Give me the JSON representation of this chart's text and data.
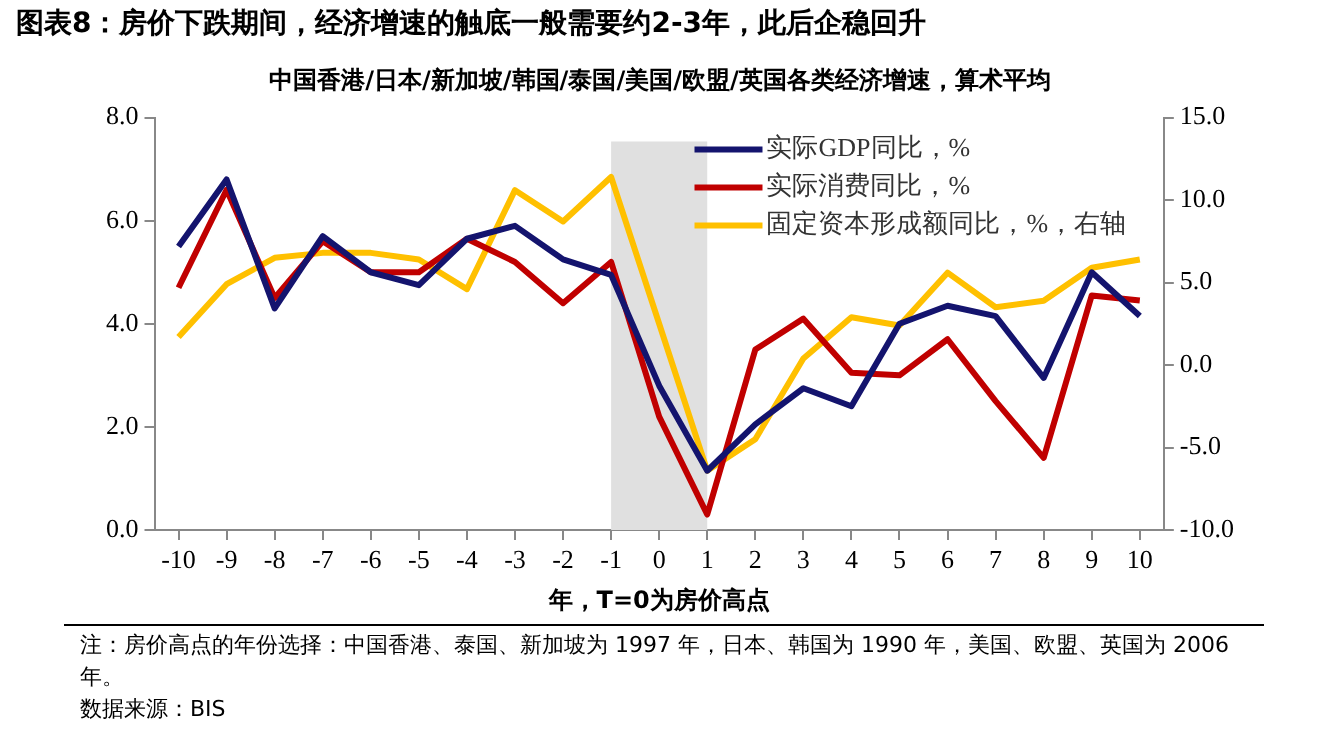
{
  "chart_data": {
    "type": "line",
    "title": "图表8：房价下跌期间，经济增速的触底一般需要约2-3年，此后企稳回升",
    "subtitle": "中国香港/日本/新加坡/韩国/泰国/美国/欧盟/英国各类经济增速，算术平均",
    "xlabel": "年，T=0为房价高点",
    "x": [
      -10,
      -9,
      -8,
      -7,
      -6,
      -5,
      -4,
      -3,
      -2,
      -1,
      0,
      1,
      2,
      3,
      4,
      5,
      6,
      7,
      8,
      9,
      10
    ],
    "xlim": [
      -10.5,
      10.5
    ],
    "xticks": [
      -10,
      -9,
      -8,
      -7,
      -6,
      -5,
      -4,
      -3,
      -2,
      -1,
      0,
      1,
      2,
      3,
      4,
      5,
      6,
      7,
      8,
      9,
      10
    ],
    "ylim": [
      0,
      8
    ],
    "yticks": [
      {
        "value": 0,
        "label": "0.0"
      },
      {
        "value": 2,
        "label": "2.0"
      },
      {
        "value": 4,
        "label": "4.0"
      },
      {
        "value": 6,
        "label": "6.0"
      },
      {
        "value": 8,
        "label": "8.0"
      }
    ],
    "y2lim": [
      -10,
      15
    ],
    "y2ticks": [
      {
        "value": -10,
        "label": "-10.0"
      },
      {
        "value": -5,
        "label": "-5.0"
      },
      {
        "value": 0,
        "label": "0.0"
      },
      {
        "value": 5,
        "label": "5.0"
      },
      {
        "value": 10,
        "label": "10.0"
      },
      {
        "value": 15,
        "label": "15.0"
      }
    ],
    "series": [
      {
        "name": "实际GDP同比，%",
        "color": "#14146e",
        "values": [
          5.5,
          6.8,
          4.3,
          5.7,
          5.0,
          4.75,
          5.65,
          5.9,
          5.25,
          4.95,
          2.8,
          1.15,
          2.05,
          2.75,
          2.4,
          4.0,
          4.35,
          4.15,
          2.95,
          5.0,
          4.15
        ]
      },
      {
        "name": "实际消费同比，%",
        "color": "#c00000",
        "values": [
          4.7,
          6.6,
          4.5,
          5.6,
          5.0,
          5.0,
          5.65,
          5.2,
          4.4,
          5.2,
          2.2,
          0.3,
          3.5,
          4.1,
          3.05,
          3.0,
          3.7,
          2.5,
          1.4,
          4.55,
          4.45
        ]
      },
      {
        "name": "固定资本形成额同比，%，右轴",
        "color": "#ffc000",
        "axis": "y2",
        "values": [
          1.7,
          4.9,
          6.5,
          6.8,
          6.8,
          6.4,
          4.6,
          10.6,
          8.7,
          11.4,
          2.5,
          -6.4,
          -4.5,
          0.4,
          2.9,
          2.4,
          5.6,
          3.5,
          3.9,
          5.9,
          6.4
        ]
      }
    ],
    "bands": [
      {
        "axis": "x",
        "from": -1,
        "to": 1,
        "color": "#e0e0e0"
      }
    ],
    "legend": "top right",
    "annotations": [
      "注：房价高点的年份选择：中国香港、泰国、新加坡为 1997 年，日本、韩国为 1990 年，美国、欧盟、英国为 2006 年。",
      "数据来源：BIS"
    ]
  }
}
